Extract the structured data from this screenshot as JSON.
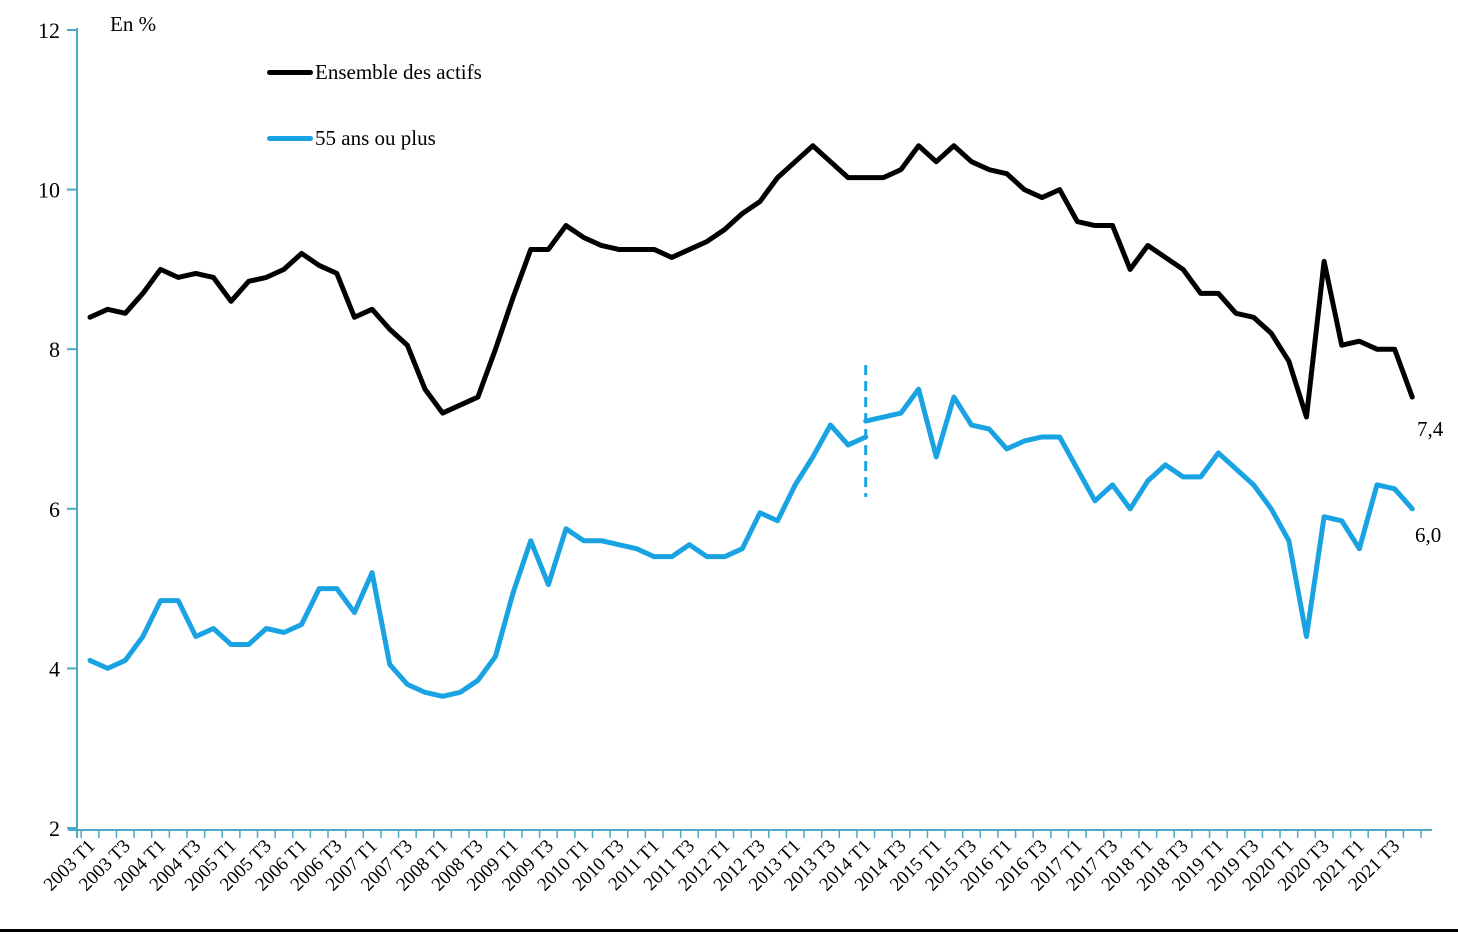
{
  "header": {
    "unit_label": "En %"
  },
  "legend": {
    "items": [
      {
        "label": "Ensemble des actifs",
        "color": "#000000"
      },
      {
        "label": "55 ans ou plus",
        "color": "#1aa3e2"
      }
    ]
  },
  "chart_data": {
    "type": "line",
    "title": "",
    "y_axis": {
      "label": "En %",
      "ticks": [
        12,
        10,
        8,
        6,
        4,
        2
      ],
      "range": [
        2,
        12
      ],
      "axis_color": "#4aaac7"
    },
    "x_axis": {
      "categories": [
        "2003 T1",
        "2003 T2",
        "2003 T3",
        "2003 T4",
        "2004 T1",
        "2004 T2",
        "2004 T3",
        "2004 T4",
        "2005 T1",
        "2005 T2",
        "2005 T3",
        "2005 T4",
        "2006 T1",
        "2006 T2",
        "2006 T3",
        "2006 T4",
        "2007 T1",
        "2007 T2",
        "2007 T3",
        "2007 T4",
        "2008 T1",
        "2008 T2",
        "2008 T3",
        "2008 T4",
        "2009 T1",
        "2009 T2",
        "2009 T3",
        "2009 T4",
        "2010 T1",
        "2010 T2",
        "2010 T3",
        "2010 T4",
        "2011 T1",
        "2011 T2",
        "2011 T3",
        "2011 T4",
        "2012 T1",
        "2012 T2",
        "2012 T3",
        "2012 T4",
        "2013 T1",
        "2013 T2",
        "2013 T3",
        "2013 T4",
        "2014 T1",
        "2014 T2",
        "2014 T3",
        "2014 T4",
        "2015 T1",
        "2015 T2",
        "2015 T3",
        "2015 T4",
        "2016 T1",
        "2016 T2",
        "2016 T3",
        "2016 T4",
        "2017 T1",
        "2017 T2",
        "2017 T3",
        "2017 T4",
        "2018 T1",
        "2018 T2",
        "2018 T3",
        "2018 T4",
        "2019 T1",
        "2019 T2",
        "2019 T3",
        "2019 T4",
        "2020 T1",
        "2020 T2",
        "2020 T3",
        "2020 T4",
        "2021 T1",
        "2021 T2",
        "2021 T3",
        "2021 T4"
      ],
      "tick_label_step": 2,
      "axis_color": "#4aaac7"
    },
    "series": [
      {
        "name": "Ensemble des actifs",
        "color": "#000000",
        "stroke_width": 5,
        "end_label": "7,4",
        "values": [
          8.4,
          8.5,
          8.45,
          8.7,
          9.0,
          8.9,
          8.95,
          8.9,
          8.6,
          8.85,
          8.9,
          9.0,
          9.2,
          9.05,
          8.95,
          8.4,
          8.5,
          8.25,
          8.05,
          7.5,
          7.2,
          7.3,
          7.4,
          8.0,
          8.65,
          9.25,
          9.25,
          9.55,
          9.4,
          9.3,
          9.25,
          9.25,
          9.25,
          9.15,
          9.25,
          9.35,
          9.5,
          9.7,
          9.85,
          10.15,
          10.35,
          10.55,
          10.35,
          10.15,
          10.15,
          10.15,
          10.25,
          10.55,
          10.35,
          10.55,
          10.35,
          10.25,
          10.2,
          10.0,
          9.9,
          10.0,
          9.6,
          9.55,
          9.55,
          9.0,
          9.3,
          9.15,
          9.0,
          8.7,
          8.7,
          8.45,
          8.4,
          8.2,
          7.85,
          7.15,
          9.1,
          8.05,
          8.1,
          8.0,
          8.0,
          7.4
        ]
      },
      {
        "name": "55 ans ou plus",
        "color": "#1aa3e2",
        "stroke_width": 5,
        "end_label": "6,0",
        "break": {
          "index": 44,
          "pre_break_value": 6.9
        },
        "values": [
          4.1,
          4.0,
          4.1,
          4.4,
          4.85,
          4.85,
          4.4,
          4.5,
          4.3,
          4.3,
          4.5,
          4.45,
          4.55,
          5.0,
          5.0,
          4.7,
          5.2,
          4.05,
          3.8,
          3.7,
          3.65,
          3.7,
          3.85,
          4.15,
          4.95,
          5.6,
          5.05,
          5.75,
          5.6,
          5.6,
          5.55,
          5.5,
          5.4,
          5.4,
          5.55,
          5.4,
          5.4,
          5.5,
          5.95,
          5.85,
          6.3,
          6.65,
          7.05,
          6.8,
          7.1,
          7.15,
          7.2,
          7.5,
          6.65,
          7.4,
          7.05,
          7.0,
          6.75,
          6.85,
          6.9,
          6.9,
          6.5,
          6.1,
          6.3,
          6.0,
          6.35,
          6.55,
          6.4,
          6.4,
          6.7,
          6.5,
          6.3,
          6.0,
          5.6,
          4.4,
          5.9,
          5.85,
          5.5,
          6.3,
          6.25,
          6.0
        ]
      }
    ],
    "reference_line": {
      "x_category": "2014 T1",
      "orientation": "vertical",
      "style": "dashed",
      "color": "#1aa3e2",
      "value_from": 6.15,
      "value_to": 7.8
    },
    "legend_position": "top-left-inside",
    "grid": false
  }
}
